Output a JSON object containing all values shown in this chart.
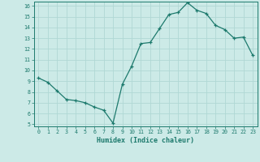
{
  "x": [
    0,
    1,
    2,
    3,
    4,
    5,
    6,
    7,
    8,
    9,
    10,
    11,
    12,
    13,
    14,
    15,
    16,
    17,
    18,
    19,
    20,
    21,
    22,
    23
  ],
  "y": [
    9.3,
    8.9,
    8.1,
    7.3,
    7.2,
    7.0,
    6.6,
    6.3,
    5.1,
    8.7,
    10.4,
    12.5,
    12.6,
    13.9,
    15.2,
    15.4,
    16.3,
    15.6,
    15.3,
    14.2,
    13.8,
    13.0,
    13.1,
    11.4
  ],
  "xlabel": "Humidex (Indice chaleur)",
  "xlim": [
    -0.5,
    23.5
  ],
  "ylim": [
    4.8,
    16.4
  ],
  "xticks": [
    0,
    1,
    2,
    3,
    4,
    5,
    6,
    7,
    8,
    9,
    10,
    11,
    12,
    13,
    14,
    15,
    16,
    17,
    18,
    19,
    20,
    21,
    22,
    23
  ],
  "yticks": [
    5,
    6,
    7,
    8,
    9,
    10,
    11,
    12,
    13,
    14,
    15,
    16
  ],
  "line_color": "#1d7a6d",
  "bg_color": "#cceae7",
  "grid_color": "#b0d8d4"
}
